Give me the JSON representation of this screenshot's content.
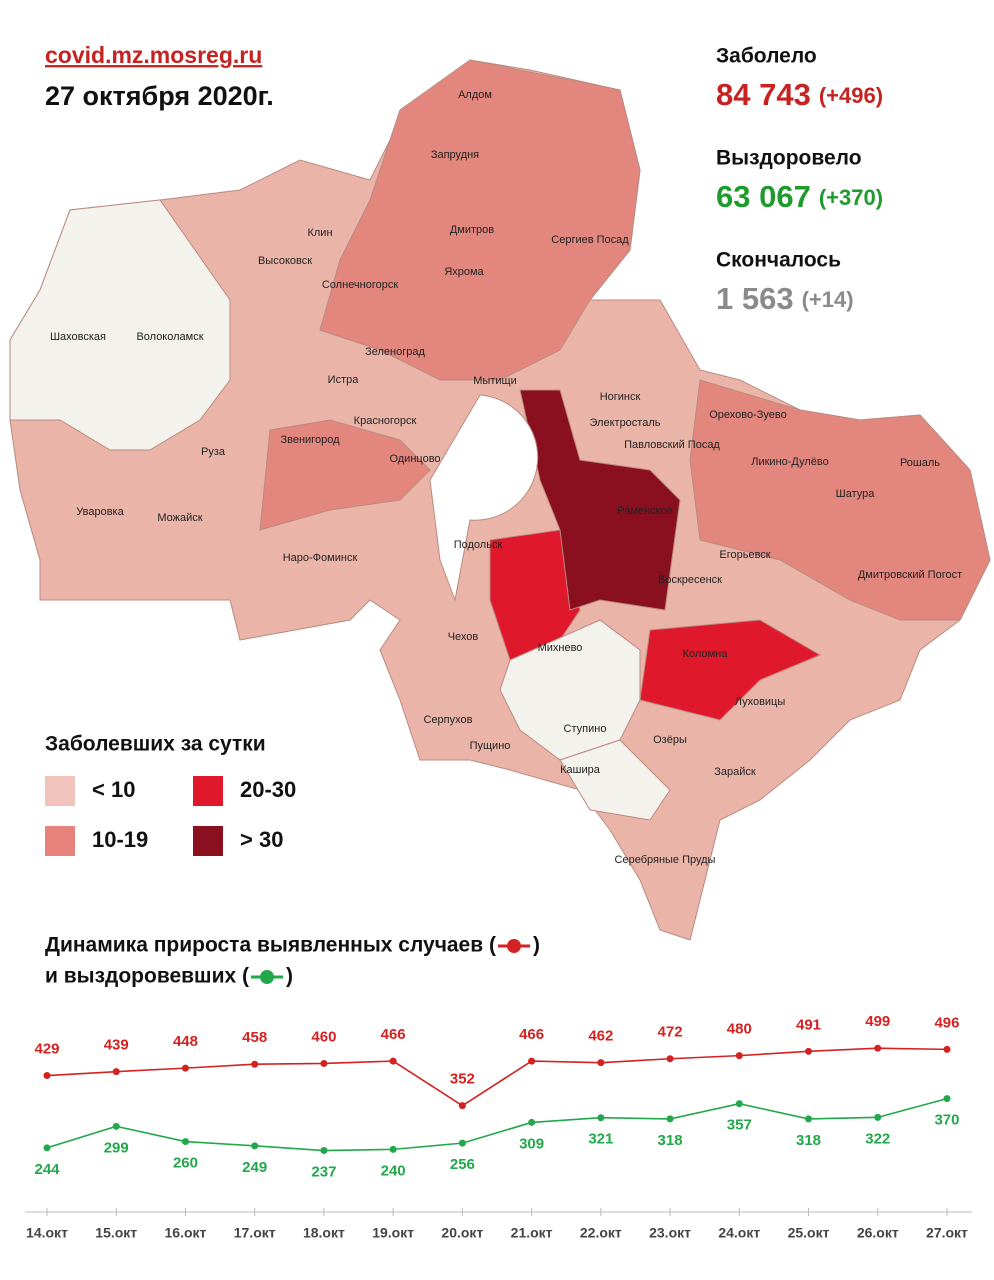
{
  "header": {
    "source": "covid.mz.mosreg.ru",
    "date": "27 октября 2020г."
  },
  "stats": [
    {
      "label": "Заболело",
      "value": "84 743",
      "delta": "(+496)",
      "color": "#c62222"
    },
    {
      "label": "Выздоровело",
      "value": "63 067",
      "delta": "(+370)",
      "color": "#1f9a2c"
    },
    {
      "label": "Скончалось",
      "value": "1 563",
      "delta": "(+14)",
      "color": "#8a8a8a"
    }
  ],
  "map": {
    "labels": [
      "Алдом",
      "Запрудня",
      "Дмитров",
      "Сергиев Посад",
      "Яхрома",
      "Клин",
      "Высоковск",
      "Солнечногорск",
      "Шаховская",
      "Волоколамск",
      "Зеленоград",
      "Мытищи",
      "Истра",
      "Красногорск",
      "Ногинск",
      "Электросталь",
      "Орехово-Зуево",
      "Павловский Посад",
      "Ликино-Дулёво",
      "Рошаль",
      "Звенигород",
      "Одинцово",
      "Руза",
      "Раменское",
      "Шатура",
      "Уваровка",
      "Можайск",
      "Подольск",
      "Наро-Фоминск",
      "Егорьевск",
      "Воскресенск",
      "Дмитровский Погост",
      "Чехов",
      "Михнево",
      "Коломна",
      "Серпухов",
      "Луховицы",
      "Пущино",
      "Ступино",
      "Озёры",
      "Кашира",
      "Зарайск",
      "Серебряные Пруды"
    ]
  },
  "legend": {
    "title": "Заболевших за сутки",
    "items": [
      {
        "label": "< 10",
        "color": "#f0c3bd"
      },
      {
        "label": "20-30",
        "color": "#e0182c"
      },
      {
        "label": "10-19",
        "color": "#e8827c"
      },
      {
        "label": "> 30",
        "color": "#8a1020"
      }
    ]
  },
  "chart_data": {
    "type": "line",
    "title": [
      [
        "Динамика прироста выявленных случаев (",
        ")"
      ],
      [
        "и выздоровевших (",
        ")"
      ]
    ],
    "categories": [
      "14.окт",
      "15.окт",
      "16.окт",
      "17.окт",
      "18.окт",
      "19.окт",
      "20.окт",
      "21.окт",
      "22.окт",
      "23.окт",
      "24.окт",
      "25.окт",
      "26.окт",
      "27.окт"
    ],
    "series": [
      {
        "color": "#d42222",
        "values": [
          429,
          439,
          448,
          458,
          460,
          466,
          352,
          466,
          462,
          472,
          480,
          491,
          499,
          496
        ]
      },
      {
        "color": "#22a84a",
        "values": [
          244,
          299,
          260,
          249,
          237,
          240,
          256,
          309,
          321,
          318,
          357,
          318,
          322,
          370
        ]
      }
    ],
    "ylim": [
      200,
      520
    ]
  }
}
